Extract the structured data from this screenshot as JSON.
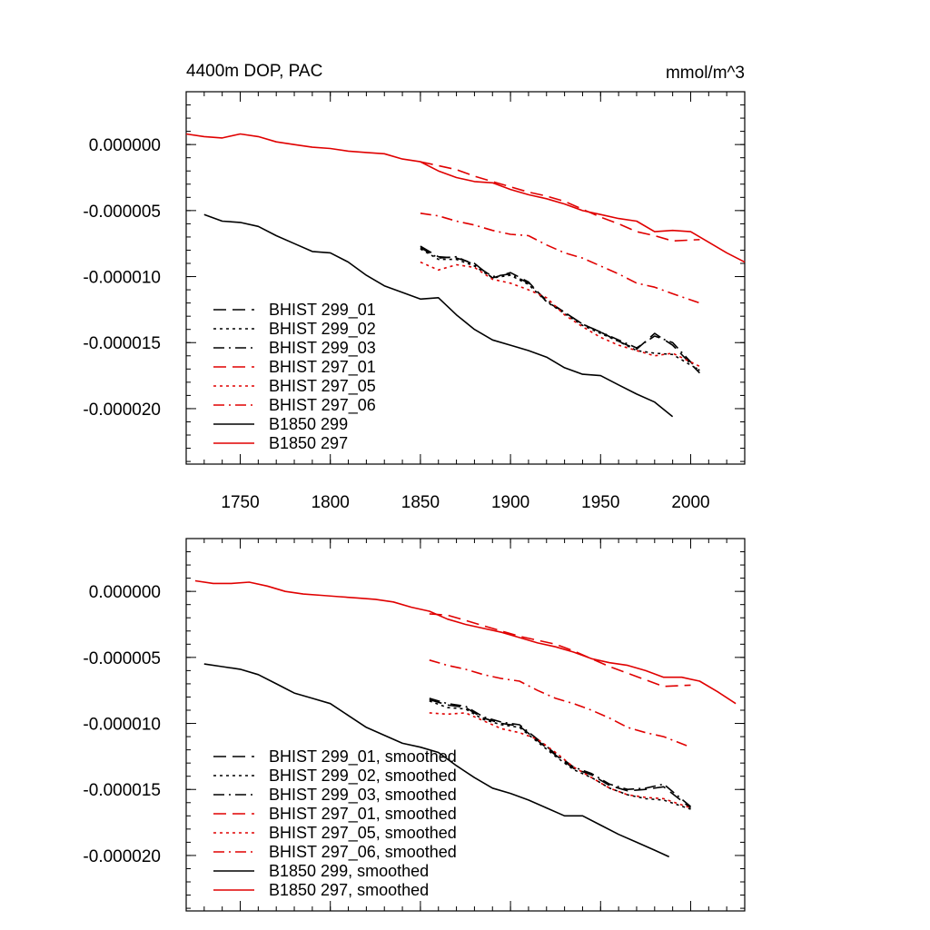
{
  "chart_data": [
    {
      "type": "line",
      "title_left": "4400m DOP, PAC",
      "title_right": "mmol/m^3",
      "xlim": [
        1720,
        2030
      ],
      "ylim": [
        -2.42e-05,
        4e-06
      ],
      "x_ticks": [
        1750,
        1800,
        1850,
        1900,
        1950,
        2000
      ],
      "x_tick_labels": [
        "1750",
        "1800",
        "1850",
        "1900",
        "1950",
        "2000"
      ],
      "y_ticks": [
        0,
        -5e-06,
        -1e-05,
        -1.5e-05,
        -2e-05
      ],
      "y_tick_labels": [
        "0.000000",
        "-0.000005",
        "-0.000010",
        "-0.000015",
        "-0.000020"
      ],
      "show_x_labels": true,
      "series": [
        {
          "name": "BHIST 299_01",
          "color": "#000000",
          "dash": "long",
          "x": [
            1850,
            1860,
            1870,
            1880,
            1890,
            1900,
            1910,
            1920,
            1930,
            1940,
            1950,
            1960,
            1970,
            1980,
            1990,
            2005
          ],
          "y": [
            -7.7e-06,
            -8.5e-06,
            -8.6e-06,
            -9e-06,
            -1.01e-05,
            -9.7e-06,
            -1.04e-05,
            -1.19e-05,
            -1.27e-05,
            -1.36e-05,
            -1.42e-05,
            -1.49e-05,
            -1.55e-05,
            -1.43e-05,
            -1.52e-05,
            -1.73e-05
          ]
        },
        {
          "name": "BHIST 299_02",
          "color": "#000000",
          "dash": "dot",
          "x": [
            1850,
            1860,
            1870,
            1880,
            1890,
            1900,
            1910,
            1920,
            1930,
            1940,
            1950,
            1960,
            1970,
            1980,
            1990,
            2005
          ],
          "y": [
            -7.9e-06,
            -8.7e-06,
            -8.7e-06,
            -9.2e-06,
            -1.01e-05,
            -9.9e-06,
            -1.06e-05,
            -1.19e-05,
            -1.28e-05,
            -1.37e-05,
            -1.43e-05,
            -1.49e-05,
            -1.56e-05,
            -1.58e-05,
            -1.59e-05,
            -1.71e-05
          ]
        },
        {
          "name": "BHIST 299_03",
          "color": "#000000",
          "dash": "dashdot",
          "x": [
            1850,
            1860,
            1870,
            1880,
            1890,
            1900,
            1910,
            1920,
            1930,
            1940,
            1950,
            1960,
            1970,
            1980,
            1990,
            2005
          ],
          "y": [
            -7.8e-06,
            -8.6e-06,
            -8.5e-06,
            -9.1e-06,
            -1e-05,
            -9.8e-06,
            -1.05e-05,
            -1.18e-05,
            -1.27e-05,
            -1.36e-05,
            -1.42e-05,
            -1.48e-05,
            -1.54e-05,
            -1.45e-05,
            -1.5e-05,
            -1.72e-05
          ]
        },
        {
          "name": "BHIST 297_01",
          "color": "#e00000",
          "dash": "long",
          "x": [
            1850,
            1860,
            1870,
            1880,
            1890,
            1900,
            1910,
            1920,
            1930,
            1940,
            1950,
            1960,
            1970,
            1980,
            1990,
            2005
          ],
          "y": [
            -1.3e-06,
            -1.6e-06,
            -1.9e-06,
            -2.4e-06,
            -2.8e-06,
            -3.2e-06,
            -3.6e-06,
            -3.9e-06,
            -4.3e-06,
            -4.9e-06,
            -5.5e-06,
            -6e-06,
            -6.6e-06,
            -6.9e-06,
            -7.3e-06,
            -7.2e-06
          ]
        },
        {
          "name": "BHIST 297_05",
          "color": "#e00000",
          "dash": "dot",
          "x": [
            1850,
            1860,
            1870,
            1880,
            1890,
            1900,
            1910,
            1920,
            1930,
            1940,
            1950,
            1960,
            1970,
            1980,
            1990,
            2005
          ],
          "y": [
            -8.9e-06,
            -9.5e-06,
            -9.1e-06,
            -9.3e-06,
            -1.02e-05,
            -1.05e-05,
            -1.1e-05,
            -1.16e-05,
            -1.29e-05,
            -1.38e-05,
            -1.46e-05,
            -1.52e-05,
            -1.56e-05,
            -1.6e-05,
            -1.58e-05,
            -1.68e-05
          ]
        },
        {
          "name": "BHIST 297_06",
          "color": "#e00000",
          "dash": "dashdot",
          "x": [
            1850,
            1860,
            1870,
            1880,
            1890,
            1900,
            1910,
            1920,
            1930,
            1940,
            1950,
            1960,
            1970,
            1980,
            1990,
            2005
          ],
          "y": [
            -5.2e-06,
            -5.4e-06,
            -5.8e-06,
            -6.1e-06,
            -6.5e-06,
            -6.8e-06,
            -6.9e-06,
            -7.6e-06,
            -8.2e-06,
            -8.6e-06,
            -9.2e-06,
            -9.8e-06,
            -1.05e-05,
            -1.08e-05,
            -1.13e-05,
            -1.2e-05
          ]
        },
        {
          "name": "B1850 299",
          "color": "#000000",
          "dash": "solid",
          "x": [
            1730,
            1740,
            1750,
            1760,
            1770,
            1780,
            1790,
            1800,
            1810,
            1820,
            1830,
            1840,
            1850,
            1860,
            1870,
            1880,
            1890,
            1900,
            1910,
            1920,
            1930,
            1940,
            1950,
            1960,
            1970,
            1980,
            1990
          ],
          "y": [
            -5.3e-06,
            -5.8e-06,
            -5.9e-06,
            -6.2e-06,
            -6.9e-06,
            -7.5e-06,
            -8.1e-06,
            -8.2e-06,
            -8.9e-06,
            -9.9e-06,
            -1.07e-05,
            -1.12e-05,
            -1.17e-05,
            -1.16e-05,
            -1.29e-05,
            -1.4e-05,
            -1.48e-05,
            -1.52e-05,
            -1.56e-05,
            -1.61e-05,
            -1.69e-05,
            -1.74e-05,
            -1.75e-05,
            -1.82e-05,
            -1.89e-05,
            -1.95e-05,
            -2.06e-05
          ]
        },
        {
          "name": "B1850 297",
          "color": "#e00000",
          "dash": "solid",
          "x": [
            1720,
            1730,
            1740,
            1750,
            1760,
            1770,
            1780,
            1790,
            1800,
            1810,
            1820,
            1830,
            1840,
            1850,
            1860,
            1870,
            1880,
            1890,
            1900,
            1910,
            1920,
            1930,
            1940,
            1950,
            1960,
            1970,
            1980,
            1990,
            2000,
            2010,
            2020,
            2030
          ],
          "y": [
            8e-07,
            6e-07,
            5e-07,
            8e-07,
            6e-07,
            2e-07,
            0.0,
            -2e-07,
            -3e-07,
            -5e-07,
            -6e-07,
            -7e-07,
            -1.1e-06,
            -1.3e-06,
            -2e-06,
            -2.5e-06,
            -2.8e-06,
            -2.9e-06,
            -3.4e-06,
            -3.8e-06,
            -4.1e-06,
            -4.5e-06,
            -5e-06,
            -5.3e-06,
            -5.6e-06,
            -5.8e-06,
            -6.6e-06,
            -6.5e-06,
            -6.6e-06,
            -7.4e-06,
            -8.2e-06,
            -8.9e-06
          ]
        }
      ]
    },
    {
      "type": "line",
      "title_left": "",
      "title_right": "",
      "xlim": [
        1720,
        2030
      ],
      "ylim": [
        -2.42e-05,
        4e-06
      ],
      "x_ticks": [
        1750,
        1800,
        1850,
        1900,
        1950,
        2000
      ],
      "x_tick_labels": [],
      "y_ticks": [
        0,
        -5e-06,
        -1e-05,
        -1.5e-05,
        -2e-05
      ],
      "y_tick_labels": [
        "0.000000",
        "-0.000005",
        "-0.000010",
        "-0.000015",
        "-0.000020"
      ],
      "show_x_labels": false,
      "series": [
        {
          "name": "BHIST 299_01, smoothed",
          "color": "#000000",
          "dash": "long",
          "x": [
            1855,
            1865,
            1875,
            1885,
            1895,
            1905,
            1915,
            1925,
            1935,
            1945,
            1955,
            1965,
            1975,
            1985,
            2000
          ],
          "y": [
            -8.2e-06,
            -8.6e-06,
            -8.8e-06,
            -9.6e-06,
            -1e-05,
            -1.02e-05,
            -1.13e-05,
            -1.24e-05,
            -1.34e-05,
            -1.39e-05,
            -1.47e-05,
            -1.51e-05,
            -1.5e-05,
            -1.48e-05,
            -1.64e-05
          ]
        },
        {
          "name": "BHIST 299_02, smoothed",
          "color": "#000000",
          "dash": "dot",
          "x": [
            1855,
            1865,
            1875,
            1885,
            1895,
            1905,
            1915,
            1925,
            1935,
            1945,
            1955,
            1965,
            1975,
            1985,
            2000
          ],
          "y": [
            -8.3e-06,
            -8.8e-06,
            -8.9e-06,
            -9.7e-06,
            -1.01e-05,
            -1.03e-05,
            -1.14e-05,
            -1.25e-05,
            -1.35e-05,
            -1.41e-05,
            -1.49e-05,
            -1.54e-05,
            -1.57e-05,
            -1.58e-05,
            -1.65e-05
          ]
        },
        {
          "name": "BHIST 299_03, smoothed",
          "color": "#000000",
          "dash": "dashdot",
          "x": [
            1855,
            1865,
            1875,
            1885,
            1895,
            1905,
            1915,
            1925,
            1935,
            1945,
            1955,
            1965,
            1975,
            1985,
            2000
          ],
          "y": [
            -8.1e-06,
            -8.5e-06,
            -8.7e-06,
            -9.5e-06,
            -9.9e-06,
            -1.01e-05,
            -1.12e-05,
            -1.23e-05,
            -1.33e-05,
            -1.38e-05,
            -1.46e-05,
            -1.5e-05,
            -1.49e-05,
            -1.46e-05,
            -1.63e-05
          ]
        },
        {
          "name": "BHIST 297_01, smoothed",
          "color": "#e00000",
          "dash": "long",
          "x": [
            1855,
            1865,
            1875,
            1885,
            1895,
            1905,
            1915,
            1925,
            1935,
            1945,
            1955,
            1965,
            1975,
            1985,
            2000
          ],
          "y": [
            -1.7e-06,
            -1.8e-06,
            -2.2e-06,
            -2.6e-06,
            -3e-06,
            -3.4e-06,
            -3.7e-06,
            -4e-06,
            -4.5e-06,
            -5.1e-06,
            -5.7e-06,
            -6.2e-06,
            -6.7e-06,
            -7.2e-06,
            -7.1e-06
          ]
        },
        {
          "name": "BHIST 297_05, smoothed",
          "color": "#e00000",
          "dash": "dot",
          "x": [
            1855,
            1865,
            1875,
            1885,
            1895,
            1905,
            1915,
            1925,
            1935,
            1945,
            1955,
            1965,
            1975,
            1985,
            2000
          ],
          "y": [
            -9.2e-06,
            -9.3e-06,
            -9.2e-06,
            -9.8e-06,
            -1.04e-05,
            -1.07e-05,
            -1.12e-05,
            -1.22e-05,
            -1.33e-05,
            -1.41e-05,
            -1.49e-05,
            -1.54e-05,
            -1.56e-05,
            -1.57e-05,
            -1.64e-05
          ]
        },
        {
          "name": "BHIST 297_06, smoothed",
          "color": "#e00000",
          "dash": "dashdot",
          "x": [
            1855,
            1865,
            1875,
            1885,
            1895,
            1905,
            1915,
            1925,
            1935,
            1945,
            1955,
            1965,
            1975,
            1985,
            2000
          ],
          "y": [
            -5.2e-06,
            -5.6e-06,
            -5.9e-06,
            -6.3e-06,
            -6.6e-06,
            -6.8e-06,
            -7.5e-06,
            -8.1e-06,
            -8.5e-06,
            -9e-06,
            -9.6e-06,
            -1.03e-05,
            -1.07e-05,
            -1.1e-05,
            -1.18e-05
          ]
        },
        {
          "name": "B1850 299, smoothed",
          "color": "#000000",
          "dash": "solid",
          "x": [
            1730,
            1740,
            1750,
            1760,
            1770,
            1780,
            1790,
            1800,
            1810,
            1820,
            1830,
            1840,
            1850,
            1860,
            1870,
            1880,
            1890,
            1900,
            1910,
            1920,
            1930,
            1940,
            1950,
            1960,
            1970,
            1980,
            1988
          ],
          "y": [
            -5.5e-06,
            -5.7e-06,
            -5.9e-06,
            -6.3e-06,
            -7e-06,
            -7.7e-06,
            -8.1e-06,
            -8.5e-06,
            -9.4e-06,
            -1.03e-05,
            -1.09e-05,
            -1.15e-05,
            -1.18e-05,
            -1.22e-05,
            -1.32e-05,
            -1.41e-05,
            -1.49e-05,
            -1.53e-05,
            -1.58e-05,
            -1.64e-05,
            -1.7e-05,
            -1.7e-05,
            -1.77e-05,
            -1.84e-05,
            -1.9e-05,
            -1.96e-05,
            -2.01e-05
          ]
        },
        {
          "name": "B1850 297, smoothed",
          "color": "#e00000",
          "dash": "solid",
          "x": [
            1725,
            1735,
            1745,
            1755,
            1765,
            1775,
            1785,
            1795,
            1805,
            1815,
            1825,
            1835,
            1845,
            1855,
            1865,
            1875,
            1885,
            1895,
            1905,
            1915,
            1925,
            1935,
            1945,
            1955,
            1965,
            1975,
            1985,
            1995,
            2005,
            2015,
            2025
          ],
          "y": [
            8e-07,
            6e-07,
            6e-07,
            7e-07,
            4e-07,
            0.0,
            -2e-07,
            -3e-07,
            -4e-07,
            -5e-07,
            -6e-07,
            -8e-07,
            -1.2e-06,
            -1.5e-06,
            -2.1e-06,
            -2.5e-06,
            -2.8e-06,
            -3.1e-06,
            -3.5e-06,
            -3.9e-06,
            -4.2e-06,
            -4.6e-06,
            -5.1e-06,
            -5.4e-06,
            -5.6e-06,
            -6e-06,
            -6.5e-06,
            -6.5e-06,
            -6.8e-06,
            -7.6e-06,
            -8.5e-06
          ]
        }
      ]
    }
  ]
}
